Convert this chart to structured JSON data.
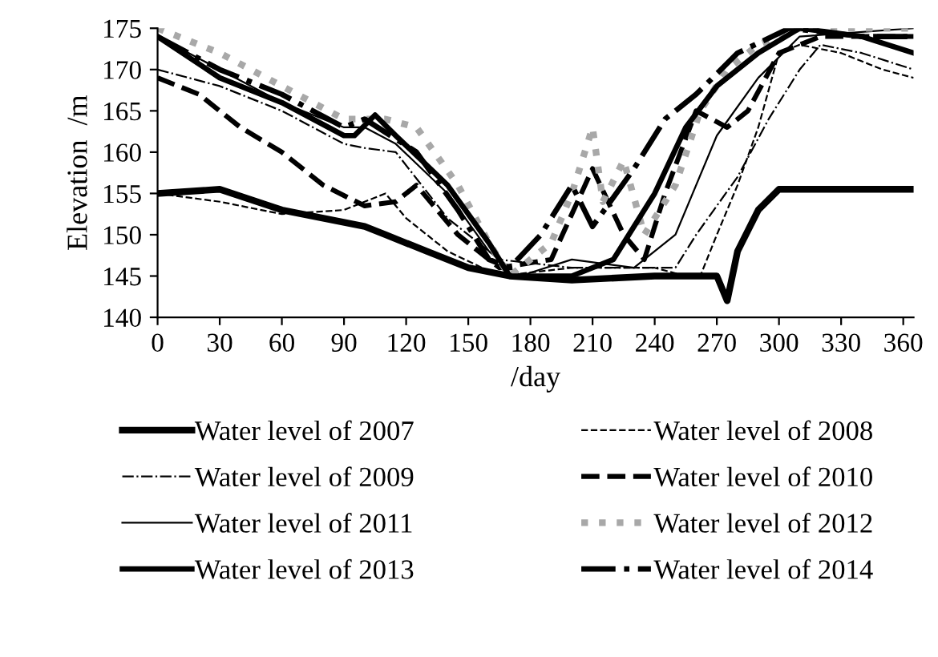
{
  "chart_data": {
    "type": "line",
    "xlabel": "/day",
    "ylabel": "Elevation  /m",
    "xlim": [
      0,
      365
    ],
    "xticks": [
      0,
      30,
      60,
      90,
      120,
      150,
      180,
      210,
      240,
      270,
      300,
      330,
      360
    ],
    "ylim": [
      140,
      175
    ],
    "yticks": [
      140,
      145,
      150,
      155,
      160,
      165,
      170,
      175
    ],
    "grid": false,
    "legend": "bottom",
    "marker": "none",
    "series": [
      {
        "name": "Water level of 2007",
        "color": "#000000",
        "line_style": "solid",
        "x": [
          0,
          30,
          60,
          80,
          100,
          110,
          130,
          150,
          170,
          200,
          240,
          270,
          275,
          280,
          290,
          300,
          330,
          365
        ],
        "values": [
          155,
          155.5,
          153,
          152,
          151,
          150,
          148,
          146,
          145,
          144.5,
          145,
          145,
          142,
          148,
          153,
          155.5,
          155.5,
          155.5
        ]
      },
      {
        "name": "Water level of 2008",
        "color": "#000000",
        "line_style": "dashed",
        "x": [
          0,
          30,
          60,
          90,
          110,
          120,
          140,
          165,
          200,
          240,
          255,
          262,
          270,
          280,
          290,
          300,
          310,
          330,
          350,
          365
        ],
        "values": [
          155,
          154,
          152.5,
          153,
          155,
          152,
          148,
          145,
          146,
          146,
          145,
          145,
          150,
          156,
          163,
          172,
          173,
          172,
          170,
          169
        ]
      },
      {
        "name": "Water level of 2009",
        "color": "#000000",
        "line_style": "dashdot",
        "x": [
          0,
          30,
          60,
          90,
          100,
          115,
          140,
          165,
          200,
          250,
          260,
          280,
          295,
          310,
          320,
          340,
          365
        ],
        "values": [
          170,
          168,
          165,
          161,
          160.5,
          160,
          152,
          147,
          146,
          146,
          150,
          157,
          164,
          170,
          173,
          172,
          170
        ]
      },
      {
        "name": "Water level of 2010",
        "color": "#000000",
        "line_style": "dashed",
        "x": [
          0,
          20,
          40,
          60,
          80,
          100,
          115,
          125,
          145,
          165,
          190,
          210,
          225,
          235,
          245,
          260,
          275,
          285,
          300,
          320,
          365
        ],
        "values": [
          169,
          167,
          163,
          160,
          156,
          153.5,
          154,
          156,
          150,
          146,
          147,
          158,
          150,
          147,
          155,
          165,
          163,
          165,
          172,
          174,
          174
        ]
      },
      {
        "name": "Water level of 2011",
        "color": "#000000",
        "line_style": "solid",
        "x": [
          0,
          30,
          60,
          90,
          100,
          115,
          140,
          160,
          175,
          200,
          230,
          250,
          270,
          290,
          310,
          365
        ],
        "values": [
          174,
          170,
          166,
          163,
          163,
          161,
          155,
          148,
          145,
          147,
          146,
          150,
          162,
          169,
          174,
          175
        ]
      },
      {
        "name": "Water level of 2012",
        "color": "#a8a8a8",
        "line_style": "dotted",
        "x": [
          0,
          30,
          60,
          90,
          110,
          125,
          145,
          160,
          170,
          190,
          200,
          210,
          215,
          225,
          235,
          250,
          262,
          275,
          290,
          310,
          365
        ],
        "values": [
          175,
          172,
          168,
          164,
          164,
          163,
          156,
          149,
          145,
          149,
          155,
          163,
          154,
          159,
          150,
          156,
          165,
          170,
          173,
          175,
          175
        ]
      },
      {
        "name": "Water level of 2013",
        "color": "#000000",
        "line_style": "solid",
        "x": [
          0,
          30,
          60,
          90,
          95,
          105,
          115,
          140,
          160,
          170,
          200,
          220,
          240,
          255,
          270,
          290,
          310,
          340,
          365
        ],
        "values": [
          174,
          169,
          166,
          162,
          162,
          164.5,
          162,
          156,
          149,
          145,
          145,
          147,
          155,
          163,
          168,
          172,
          175,
          174,
          172
        ]
      },
      {
        "name": "Water level of 2014",
        "color": "#000000",
        "line_style": "dashdot",
        "x": [
          0,
          30,
          60,
          90,
          100,
          125,
          145,
          160,
          170,
          185,
          200,
          210,
          230,
          245,
          260,
          280,
          305,
          340,
          365
        ],
        "values": [
          174,
          170,
          167,
          163,
          164,
          160,
          153,
          147,
          146,
          150,
          156,
          151,
          158,
          164,
          167,
          172,
          175,
          174,
          174
        ]
      }
    ]
  }
}
